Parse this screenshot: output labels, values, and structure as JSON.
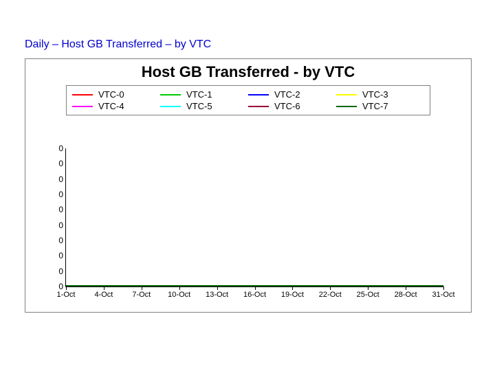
{
  "page": {
    "title": "Daily – Host GB Transferred – by VTC",
    "title_color": "#0000cc",
    "title_fontsize": 16
  },
  "chart": {
    "type": "line",
    "title": "Host GB Transferred - by VTC",
    "title_fontsize": 22,
    "title_color": "#000000",
    "background_color": "#ffffff",
    "border_color": "#808080",
    "legend": {
      "border_color": "#808080",
      "columns": 4,
      "items": [
        {
          "label": "VTC-0",
          "color": "#ff0000"
        },
        {
          "label": "VTC-1",
          "color": "#00cc00"
        },
        {
          "label": "VTC-2",
          "color": "#0000ff"
        },
        {
          "label": "VTC-3",
          "color": "#ffff00"
        },
        {
          "label": "VTC-4",
          "color": "#ff00ff"
        },
        {
          "label": "VTC-5",
          "color": "#00ffff"
        },
        {
          "label": "VTC-6",
          "color": "#990033"
        },
        {
          "label": "VTC-7",
          "color": "#006600"
        }
      ]
    },
    "y_axis": {
      "ticks": [
        0,
        0,
        0,
        0,
        0,
        0,
        0,
        0,
        0,
        0
      ],
      "label_fontsize": 12,
      "label_color": "#000000",
      "ylim": [
        0,
        0
      ]
    },
    "x_axis": {
      "ticks": [
        "1-Oct",
        "4-Oct",
        "7-Oct",
        "10-Oct",
        "13-Oct",
        "16-Oct",
        "19-Oct",
        "22-Oct",
        "25-Oct",
        "28-Oct",
        "31-Oct"
      ],
      "label_fontsize": 11,
      "label_color": "#000000",
      "tick_length": 5
    },
    "series": [
      {
        "name": "VTC-0",
        "color": "#ff0000",
        "values": [
          0,
          0,
          0,
          0,
          0,
          0,
          0,
          0,
          0,
          0,
          0
        ]
      },
      {
        "name": "VTC-1",
        "color": "#00cc00",
        "values": [
          0,
          0,
          0,
          0,
          0,
          0,
          0,
          0,
          0,
          0,
          0
        ]
      },
      {
        "name": "VTC-2",
        "color": "#0000ff",
        "values": [
          0,
          0,
          0,
          0,
          0,
          0,
          0,
          0,
          0,
          0,
          0
        ]
      },
      {
        "name": "VTC-3",
        "color": "#ffff00",
        "values": [
          0,
          0,
          0,
          0,
          0,
          0,
          0,
          0,
          0,
          0,
          0
        ]
      },
      {
        "name": "VTC-4",
        "color": "#ff00ff",
        "values": [
          0,
          0,
          0,
          0,
          0,
          0,
          0,
          0,
          0,
          0,
          0
        ]
      },
      {
        "name": "VTC-5",
        "color": "#00ffff",
        "values": [
          0,
          0,
          0,
          0,
          0,
          0,
          0,
          0,
          0,
          0,
          0
        ]
      },
      {
        "name": "VTC-6",
        "color": "#990033",
        "values": [
          0,
          0,
          0,
          0,
          0,
          0,
          0,
          0,
          0,
          0,
          0
        ]
      },
      {
        "name": "VTC-7",
        "color": "#006600",
        "values": [
          0,
          0,
          0,
          0,
          0,
          0,
          0,
          0,
          0,
          0,
          0
        ]
      }
    ],
    "line_width": 2,
    "axis_color": "#000000"
  }
}
